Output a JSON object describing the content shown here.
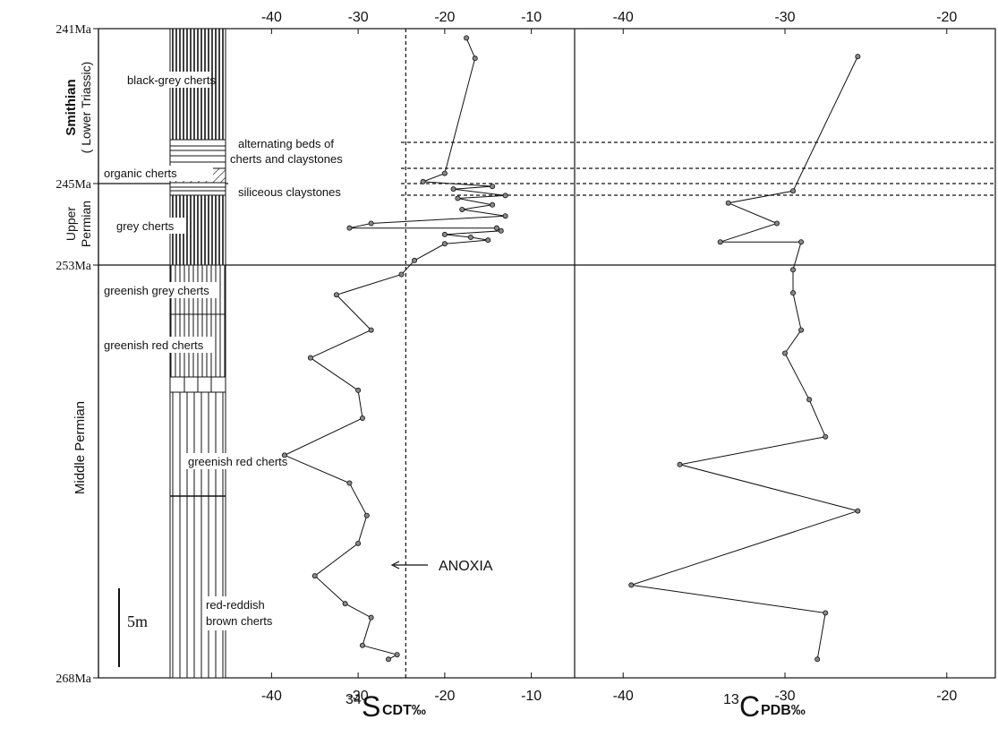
{
  "chart_data": [
    {
      "type": "table",
      "title": "",
      "age_labels": [
        "241Ma",
        "245Ma",
        "253Ma",
        "268Ma"
      ],
      "period_labels": [
        {
          "text": "Smithian",
          "sub": "( Lower Triassic)"
        },
        {
          "text": "Upper",
          "sub": "Permian"
        },
        {
          "text": "Middle Permian",
          "sub": ""
        }
      ],
      "lithology_labels": [
        "black-grey cherts",
        "alternating beds of",
        "cherts and claystones",
        "organic cherts",
        "siliceous claystones",
        "grey cherts",
        "greenish grey cherts",
        "greenish red cherts",
        "greenish red cherts",
        "red-reddish",
        "brown cherts"
      ],
      "scale_bar": "5m"
    },
    {
      "type": "line",
      "title": "",
      "xlabel_main": "34",
      "xlabel_letter": "S",
      "xlabel_unit": "CDT‰",
      "xlim": [
        -45,
        -5
      ],
      "xticks": [
        "-40",
        "-30",
        "-20",
        "-10"
      ],
      "annotation": "ANOXIA",
      "anoxia_value": -24.5,
      "series": [
        {
          "values": [
            {
              "x": -17.5,
              "y": 1
            },
            {
              "x": -16.5,
              "y": 3.2
            },
            {
              "x": -20.0,
              "y": 15.6
            },
            {
              "x": -22.5,
              "y": 16.5
            },
            {
              "x": -14.5,
              "y": 17.0
            },
            {
              "x": -19.0,
              "y": 17.3
            },
            {
              "x": -13.0,
              "y": 18.0
            },
            {
              "x": -18.5,
              "y": 18.3
            },
            {
              "x": -14.5,
              "y": 19.0
            },
            {
              "x": -18.0,
              "y": 19.5
            },
            {
              "x": -13.0,
              "y": 20.2
            },
            {
              "x": -28.5,
              "y": 21.0
            },
            {
              "x": -31.0,
              "y": 21.5
            },
            {
              "x": -14.0,
              "y": 21.5
            },
            {
              "x": -13.5,
              "y": 21.8
            },
            {
              "x": -20.0,
              "y": 22.2
            },
            {
              "x": -17.0,
              "y": 22.5
            },
            {
              "x": -15.0,
              "y": 22.8
            },
            {
              "x": -20.0,
              "y": 23.2
            },
            {
              "x": -23.5,
              "y": 25.0
            },
            {
              "x": -25.0,
              "y": 26.5
            },
            {
              "x": -32.5,
              "y": 28.7
            },
            {
              "x": -28.5,
              "y": 32.5
            },
            {
              "x": -35.5,
              "y": 35.5
            },
            {
              "x": -30.0,
              "y": 39.0
            },
            {
              "x": -29.5,
              "y": 42.0
            },
            {
              "x": -38.5,
              "y": 46.0
            },
            {
              "x": -31.0,
              "y": 49.0
            },
            {
              "x": -29.0,
              "y": 52.5
            },
            {
              "x": -30.0,
              "y": 55.5
            },
            {
              "x": -35.0,
              "y": 59.0
            },
            {
              "x": -31.5,
              "y": 62.0
            },
            {
              "x": -28.5,
              "y": 63.5
            },
            {
              "x": -29.5,
              "y": 66.5
            },
            {
              "x": -25.5,
              "y": 67.5
            },
            {
              "x": -26.5,
              "y": 68.0
            }
          ]
        }
      ]
    },
    {
      "type": "line",
      "title": "",
      "xlabel_main": "13",
      "xlabel_letter": "C",
      "xlabel_unit": "PDB‰",
      "xlim": [
        -43,
        -17
      ],
      "xticks": [
        "-40",
        "-30",
        "-20"
      ],
      "series": [
        {
          "values": [
            {
              "x": -25.5,
              "y": 3.0
            },
            {
              "x": -29.5,
              "y": 17.5
            },
            {
              "x": -33.5,
              "y": 18.8
            },
            {
              "x": -30.5,
              "y": 21.0
            },
            {
              "x": -34.0,
              "y": 23.0
            },
            {
              "x": -29.0,
              "y": 23.0
            },
            {
              "x": -29.5,
              "y": 26.0
            },
            {
              "x": -29.5,
              "y": 28.5
            },
            {
              "x": -29.0,
              "y": 32.5
            },
            {
              "x": -30.0,
              "y": 35.0
            },
            {
              "x": -28.5,
              "y": 40.0
            },
            {
              "x": -27.5,
              "y": 44.0
            },
            {
              "x": -36.5,
              "y": 47.0
            },
            {
              "x": -25.5,
              "y": 52.0
            },
            {
              "x": -39.5,
              "y": 60.0
            },
            {
              "x": -27.5,
              "y": 63.0
            },
            {
              "x": -28.0,
              "y": 68.0
            }
          ]
        }
      ]
    }
  ]
}
